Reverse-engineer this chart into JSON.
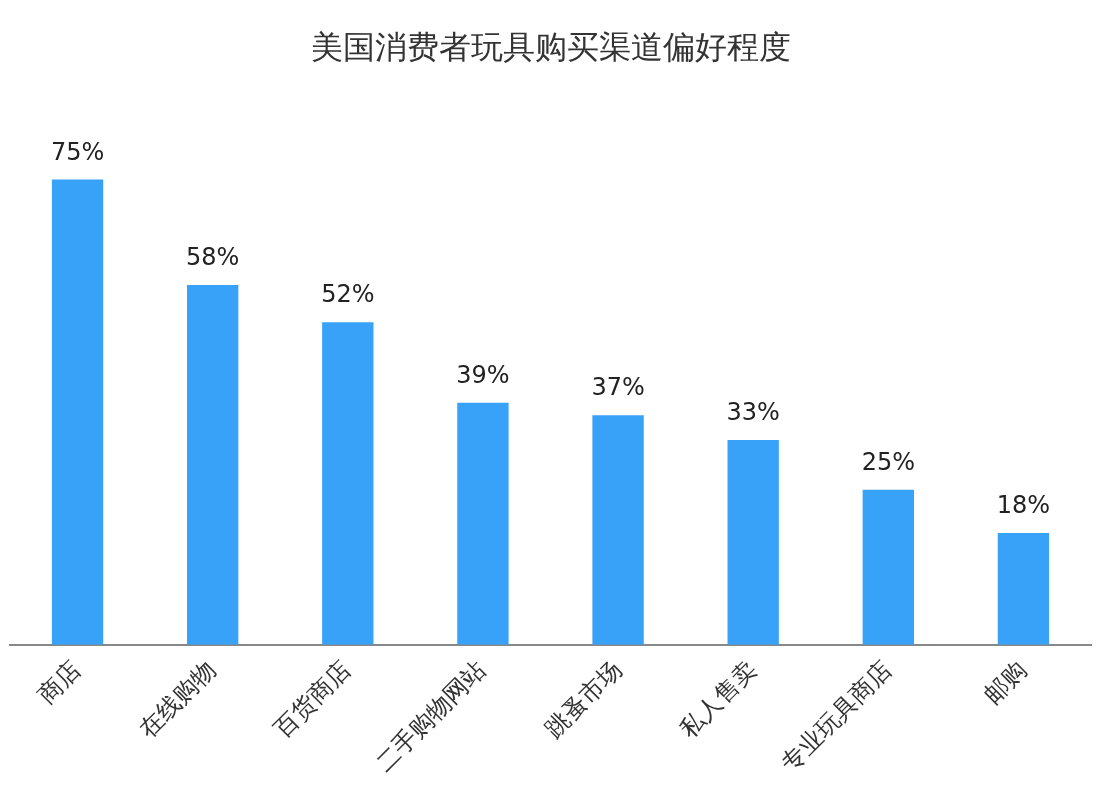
{
  "chart_data": {
    "type": "bar",
    "title": "美国消费者玩具购买渠道偏好程度",
    "categories": [
      "商店",
      "在线购物",
      "百货商店",
      "二手购物网站",
      "跳蚤市场",
      "私人售卖",
      "专业玩具商店",
      "邮购"
    ],
    "values": [
      75,
      58,
      52,
      39,
      37,
      33,
      25,
      18
    ],
    "value_labels": [
      "75%",
      "58%",
      "52%",
      "39%",
      "37%",
      "33%",
      "25%",
      "18%"
    ],
    "color": "#38a1f8",
    "grid": false,
    "legend": false,
    "tick_labels": "x"
  }
}
